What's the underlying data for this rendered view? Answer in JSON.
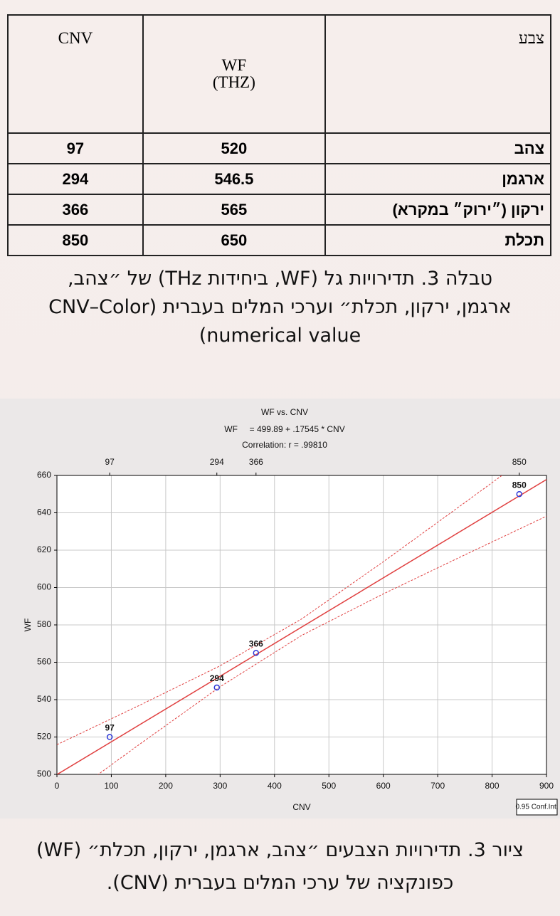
{
  "table": {
    "header": [
      "צבע",
      [
        "WF",
        "(THZ)"
      ],
      "CNV"
    ],
    "rows": [
      [
        "צהב",
        520,
        97
      ],
      [
        "ארגמן",
        546.5,
        294
      ],
      [
        "ירקון (״ירוק״ במקרא)",
        565,
        366
      ],
      [
        "תכלת",
        650,
        850
      ]
    ]
  },
  "table_caption": [
    "טבלה 3. תדירויות גל (WF, ביחידות THz) של ״צהב,",
    "ארגמן, ירקון, תכלת״ וערכי המלים בעברית (CNV–Color",
    "numerical value)"
  ],
  "chart_data": {
    "type": "scatter",
    "title": "WF vs. CNV",
    "subtitle": [
      "WF     = 499.89 + .17545 * CNV",
      "Correlation: r = .99810"
    ],
    "x_label": "CNV",
    "y_label": "WF",
    "x": [
      97,
      294,
      366,
      850
    ],
    "values": [
      520,
      546.5,
      565,
      650
    ],
    "point_labels": [
      "97",
      "294",
      "366",
      "850"
    ],
    "x2ticks": [
      97,
      294,
      366,
      850
    ],
    "xlim": [
      0,
      900
    ],
    "xticks": [
      0,
      100,
      200,
      300,
      400,
      500,
      600,
      700,
      800,
      900
    ],
    "ylim": [
      500,
      660
    ],
    "yticks": [
      500,
      520,
      540,
      560,
      580,
      600,
      620,
      640,
      660
    ],
    "grid": true,
    "color": "#2a36d8",
    "fit": {
      "intercept": 499.89,
      "slope": 0.17545,
      "color": "#e04040"
    },
    "conf_band": {
      "name": "0.95 Conf.Int.",
      "x": [
        0,
        150,
        300,
        450,
        600,
        750,
        900
      ],
      "upper": [
        515.9,
        536.7,
        558.1,
        583.2,
        613.8,
        645.5,
        677.4
      ],
      "lower": [
        483.9,
        515.7,
        546.9,
        574.4,
        596.6,
        617.5,
        638.2
      ]
    }
  },
  "figure_caption": [
    "ציור 3. תדירויות הצבעים ״צהב, ארגמן, ירקון, תכלת״ (WF)",
    "כפונקציה של ערכי המלים בעברית (CNV)."
  ]
}
